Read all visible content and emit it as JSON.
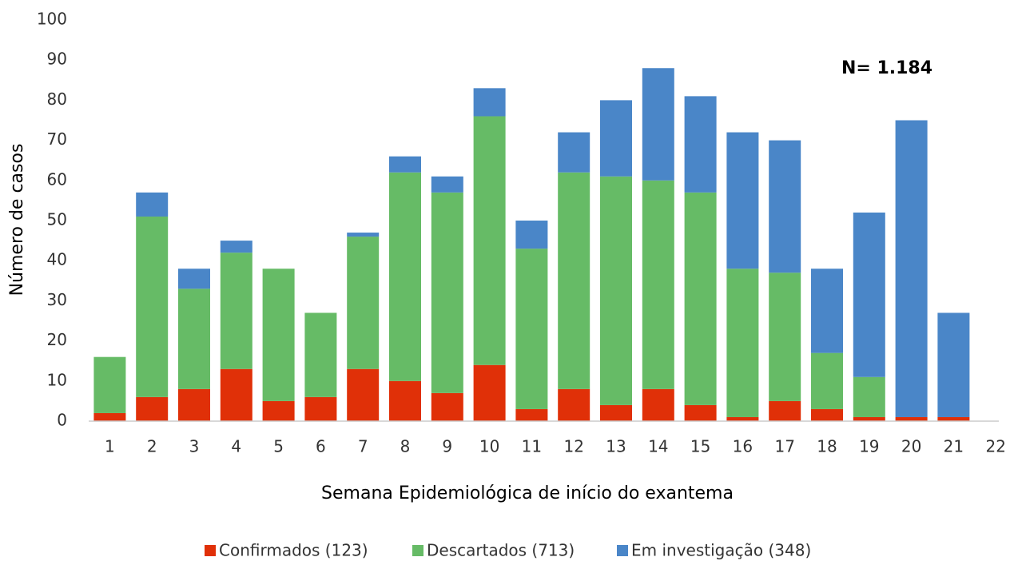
{
  "chart_data": {
    "type": "stacked_bar",
    "annotation": "N= 1.184",
    "x_label": "Semana Epidemiológica de início do exantema",
    "y_label": "Número de casos",
    "categories": [
      "1",
      "2",
      "3",
      "4",
      "5",
      "6",
      "7",
      "8",
      "9",
      "10",
      "11",
      "12",
      "13",
      "14",
      "15",
      "16",
      "17",
      "18",
      "19",
      "20",
      "21",
      "22"
    ],
    "series": [
      {
        "name": "Confirmados (123)",
        "color": "#e03008",
        "values": [
          2,
          6,
          8,
          13,
          5,
          6,
          13,
          10,
          7,
          14,
          3,
          8,
          4,
          8,
          4,
          1,
          5,
          3,
          1,
          1,
          1,
          null
        ]
      },
      {
        "name": "Descartados (713)",
        "color": "#66bb66",
        "values": [
          14,
          45,
          25,
          29,
          33,
          21,
          33,
          52,
          50,
          62,
          40,
          54,
          57,
          52,
          53,
          37,
          32,
          14,
          10,
          0,
          0,
          null
        ]
      },
      {
        "name": "Em investigação (348)",
        "color": "#4a86c8",
        "values": [
          0,
          6,
          5,
          3,
          0,
          0,
          1,
          4,
          4,
          7,
          7,
          10,
          19,
          28,
          24,
          34,
          33,
          21,
          41,
          74,
          26,
          null
        ]
      }
    ],
    "ylim": [
      0,
      100
    ],
    "yticks": [
      0,
      10,
      20,
      30,
      40,
      50,
      60,
      70,
      80,
      90,
      100
    ],
    "grid": false,
    "legend": "bottom"
  }
}
